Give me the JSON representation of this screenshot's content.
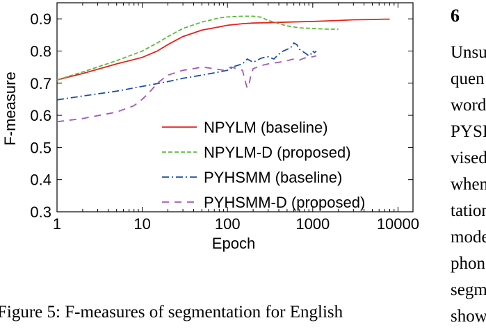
{
  "chart_data": {
    "type": "line",
    "xscale": "log",
    "xlim": [
      1,
      15000
    ],
    "ylim": [
      0.3,
      0.95
    ],
    "xlabel": "Epoch",
    "ylabel": "F-measure",
    "xticks": [
      1,
      10,
      100,
      1000,
      10000
    ],
    "xtick_labels": [
      "1",
      "10",
      "100",
      "1000",
      "10000"
    ],
    "yticks": [
      0.3,
      0.4,
      0.5,
      0.6,
      0.7,
      0.8,
      0.9
    ],
    "ytick_labels": [
      "0.3",
      "0.4",
      "0.5",
      "0.6",
      "0.7",
      "0.8",
      "0.9"
    ],
    "grid": false,
    "legend_position": "lower-right",
    "series": [
      {
        "name": "NPYLM (baseline)",
        "color": "#e8201a",
        "dash": "solid",
        "x": [
          1,
          2,
          5,
          10,
          15,
          20,
          30,
          50,
          80,
          100,
          150,
          200,
          300,
          500,
          1000,
          2000,
          3000,
          5000,
          7000,
          8000
        ],
        "y": [
          0.71,
          0.73,
          0.76,
          0.78,
          0.8,
          0.82,
          0.845,
          0.865,
          0.875,
          0.88,
          0.885,
          0.887,
          0.888,
          0.89,
          0.892,
          0.895,
          0.897,
          0.898,
          0.899,
          0.899
        ]
      },
      {
        "name": "NPYLM-D (proposed)",
        "color": "#5dbb3a",
        "dash": "dashed",
        "x": [
          1,
          2,
          5,
          10,
          15,
          20,
          30,
          50,
          80,
          100,
          150,
          200,
          250,
          300,
          400,
          500,
          700,
          1000,
          1500,
          2000
        ],
        "y": [
          0.71,
          0.735,
          0.77,
          0.8,
          0.825,
          0.845,
          0.87,
          0.89,
          0.903,
          0.906,
          0.908,
          0.908,
          0.905,
          0.895,
          0.885,
          0.878,
          0.872,
          0.87,
          0.868,
          0.868
        ]
      },
      {
        "name": "PYHSMM (baseline)",
        "color": "#1f4fa6",
        "dash": "dashdot",
        "x": [
          1,
          2,
          5,
          10,
          20,
          30,
          50,
          80,
          100,
          120,
          150,
          170,
          200,
          250,
          300,
          350,
          400,
          450,
          500,
          550,
          600,
          650,
          700,
          750,
          800,
          850,
          900,
          950,
          1000,
          1050,
          1100
        ],
        "y": [
          0.648,
          0.66,
          0.675,
          0.69,
          0.705,
          0.715,
          0.725,
          0.735,
          0.74,
          0.752,
          0.76,
          0.775,
          0.765,
          0.778,
          0.782,
          0.775,
          0.79,
          0.8,
          0.805,
          0.81,
          0.825,
          0.82,
          0.805,
          0.8,
          0.795,
          0.79,
          0.785,
          0.79,
          0.8,
          0.795,
          0.8
        ]
      },
      {
        "name": "PYHSMM-D (proposed)",
        "color": "#a457b8",
        "dash": "longdash",
        "x": [
          1,
          2,
          5,
          8,
          10,
          12,
          15,
          20,
          30,
          40,
          50,
          70,
          90,
          110,
          130,
          150,
          160,
          170,
          180,
          190,
          200,
          250,
          300,
          400,
          500,
          600,
          700,
          800,
          900,
          1000,
          1100
        ],
        "y": [
          0.58,
          0.59,
          0.61,
          0.63,
          0.65,
          0.67,
          0.7,
          0.725,
          0.74,
          0.745,
          0.75,
          0.745,
          0.74,
          0.75,
          0.745,
          0.74,
          0.71,
          0.685,
          0.7,
          0.73,
          0.745,
          0.755,
          0.76,
          0.765,
          0.77,
          0.775,
          0.772,
          0.778,
          0.78,
          0.782,
          0.785
        ]
      }
    ]
  },
  "caption": "Figure 5: F-measures of segmentation for English",
  "side_text": {
    "heading": "6",
    "lines": [
      "Unsu",
      "quen",
      "word",
      "PYSI",
      "vised",
      "when",
      "tation",
      "mode",
      "phon",
      "segm",
      "show"
    ]
  }
}
